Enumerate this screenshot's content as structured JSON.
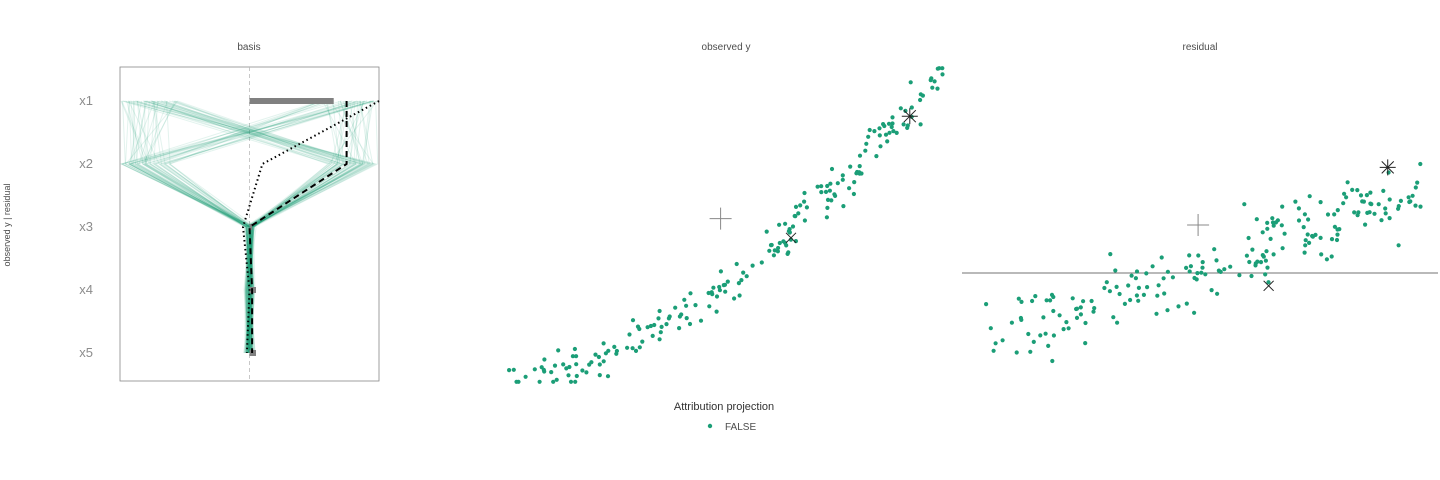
{
  "chart_data": [
    {
      "panel": "basis",
      "type": "parallel-coordinates",
      "title": "basis",
      "variables": [
        "x1",
        "x2",
        "x3",
        "x4",
        "x5"
      ],
      "xlim": [
        -1,
        1
      ],
      "profile_color": "#1b9e77",
      "highlight": {
        "dashed": [
          0.75,
          0.75,
          0.0,
          0.02,
          0.02
        ],
        "dotted": [
          1.0,
          0.1,
          -0.05,
          0.0,
          -0.02
        ]
      },
      "basis_bars": [
        0.65,
        0.0,
        0.02,
        0.05,
        0.05
      ]
    },
    {
      "panel": "observed_y",
      "type": "scatter",
      "title": "observed y",
      "color": "#1b9e77",
      "xlim": [
        0,
        1
      ],
      "ylim": [
        0,
        1
      ],
      "n_points": 200,
      "markers": [
        {
          "kind": "plus",
          "x": 0.49,
          "y": 0.52
        },
        {
          "kind": "cross",
          "x": 0.65,
          "y": 0.46
        },
        {
          "kind": "asterisk",
          "x": 0.92,
          "y": 0.84
        }
      ]
    },
    {
      "panel": "residual",
      "type": "scatter",
      "title": "residual",
      "color": "#1b9e77",
      "hline": 0.0,
      "xlim": [
        0,
        1
      ],
      "ylim": [
        -0.35,
        0.65
      ],
      "markers": [
        {
          "kind": "plus",
          "x": 0.49,
          "y": 0.15
        },
        {
          "kind": "cross",
          "x": 0.65,
          "y": -0.04
        },
        {
          "kind": "asterisk",
          "x": 0.92,
          "y": 0.33
        }
      ]
    }
  ],
  "side_label": "observed y | residual",
  "legend": {
    "title": "Attribution projection",
    "items": [
      {
        "label": "FALSE",
        "color": "#1b9e77"
      }
    ]
  }
}
